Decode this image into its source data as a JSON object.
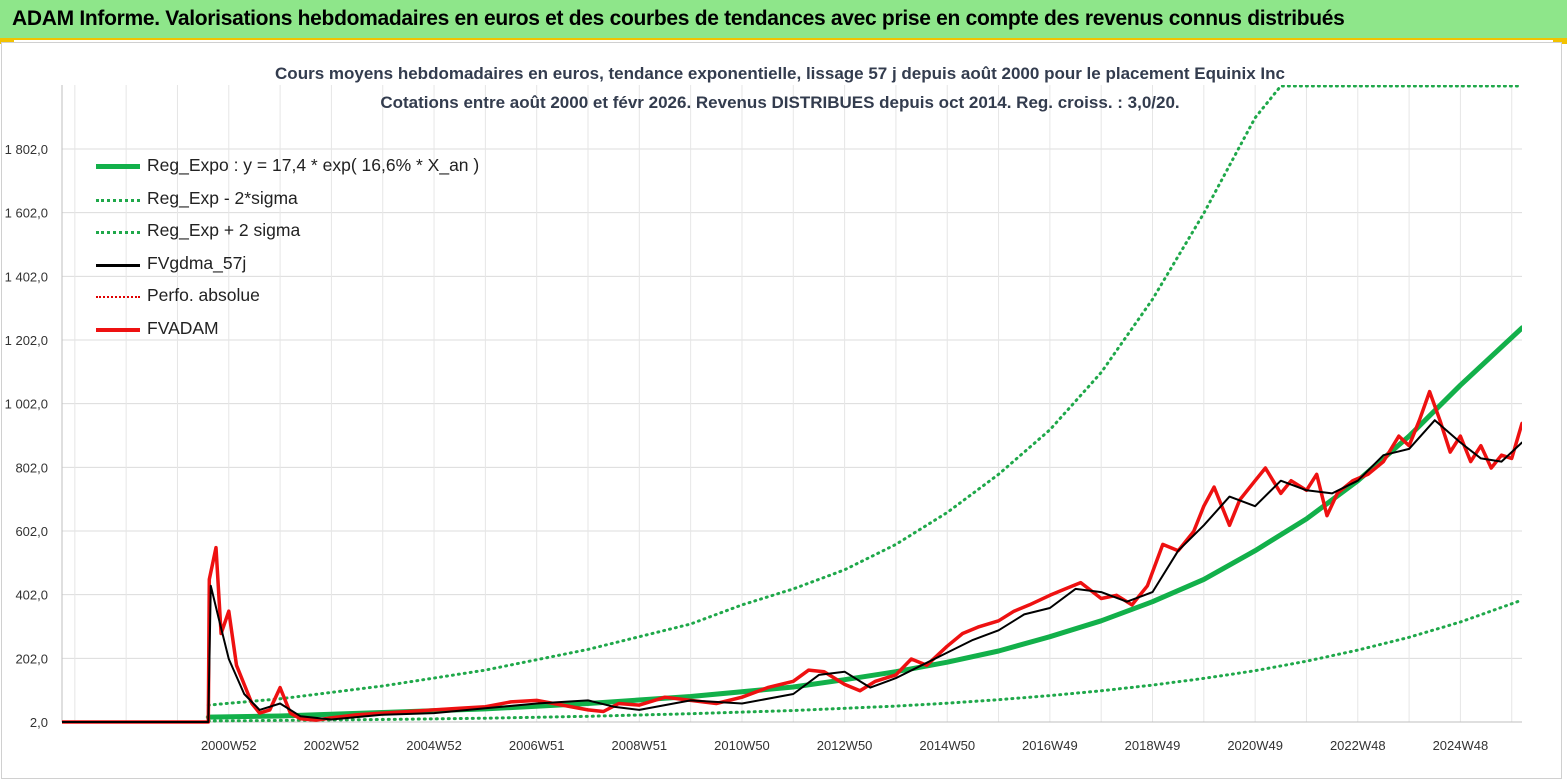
{
  "banner": {
    "title": "ADAM Informe. Valorisations hebdomadaires en euros et des courbes de tendances avec prise en compte des revenus connus distribués"
  },
  "colors": {
    "banner_bg": "#8ee68a",
    "banner_border": "#f2c200",
    "reg_expo": "#12b04a",
    "sigma_bands": "#1fa84a",
    "fvgdma": "#000000",
    "perfo": "#e00000",
    "fvadam": "#ee1111"
  },
  "chart_data": {
    "type": "line",
    "title": "Cours moyens hebdomadaires en euros, tendance exponentielle, lissage 57 j depuis août 2000 pour le placement Equinix Inc",
    "subtitle": "Cotations entre août 2000 et févr 2026. Revenus DISTRIBUES depuis oct 2014. Reg. croiss. : 3,0/20.",
    "y_ticks": [
      "2,0",
      "202,0",
      "402,0",
      "602,0",
      "802,0",
      "1 002,0",
      "1 202,0",
      "1 402,0",
      "1 602,0",
      "1 802,0"
    ],
    "ylim": [
      2,
      2000
    ],
    "x_ticks": [
      "2000W52",
      "2002W52",
      "2004W52",
      "2006W51",
      "2008W51",
      "2010W50",
      "2012W50",
      "2014W50",
      "2016W49",
      "2018W49",
      "2020W49",
      "2022W48",
      "2024W48"
    ],
    "x_tick_years": [
      2001.0,
      2003.0,
      2005.0,
      2007.0,
      2009.0,
      2011.0,
      2013.0,
      2015.0,
      2017.0,
      2019.0,
      2021.0,
      2023.0,
      2025.0
    ],
    "xlim": [
      1997.75,
      2026.2
    ],
    "grid": true,
    "legend_position": "top-left",
    "series": [
      {
        "name": "Reg_Expo : y = 17,4 * exp( 16,6% *  X_an )",
        "style": "solid-thick",
        "x": [
          2000.6,
          2002,
          2004,
          2006,
          2008,
          2010,
          2012,
          2013,
          2014,
          2015,
          2016,
          2017,
          2018,
          2019,
          2020,
          2021,
          2022,
          2023,
          2024,
          2025,
          2026.2
        ],
        "y": [
          17.4,
          21,
          32,
          43,
          60,
          82,
          112,
          135,
          160,
          190,
          225,
          270,
          320,
          380,
          450,
          540,
          640,
          760,
          900,
          1060,
          1240
        ]
      },
      {
        "name": "Reg_Exp - 2*sigma",
        "style": "dotted",
        "x": [
          2000.6,
          2002,
          2004,
          2006,
          2008,
          2010,
          2012,
          2014,
          2015,
          2016,
          2017,
          2018,
          2019,
          2020,
          2021,
          2022,
          2023,
          2024,
          2025,
          2026.2
        ],
        "y": [
          5,
          7,
          10,
          14,
          20,
          28,
          38,
          52,
          61,
          72,
          85,
          100,
          118,
          139,
          163,
          193,
          228,
          268,
          316,
          385
        ]
      },
      {
        "name": "Reg_Exp + 2 sigma",
        "style": "dotted",
        "x": [
          2000.6,
          2002,
          2004,
          2006,
          2008,
          2010,
          2011,
          2012,
          2013,
          2014,
          2015,
          2016,
          2017,
          2018,
          2019,
          2020,
          2021,
          2021.5,
          2022,
          2024,
          2026.2
        ],
        "y": [
          55,
          75,
          115,
          165,
          230,
          310,
          370,
          420,
          480,
          560,
          660,
          780,
          920,
          1100,
          1330,
          1600,
          1900,
          2000,
          2000,
          2000,
          2000
        ]
      },
      {
        "name": "FVgdma_57j",
        "style": "solid-thin",
        "x": [
          1997.75,
          2000.6,
          2000.65,
          2000.8,
          2001.0,
          2001.3,
          2001.6,
          2002.0,
          2002.4,
          2003.0,
          2004.0,
          2005.0,
          2006.0,
          2007.0,
          2008.0,
          2008.5,
          2009.0,
          2010.0,
          2011.0,
          2012.0,
          2012.5,
          2013.0,
          2013.5,
          2014.0,
          2014.5,
          2015.0,
          2015.5,
          2016.0,
          2016.5,
          2017.0,
          2017.5,
          2018.0,
          2018.5,
          2019.0,
          2019.5,
          2020.0,
          2020.5,
          2021.0,
          2021.5,
          2022.0,
          2022.5,
          2023.0,
          2023.5,
          2024.0,
          2024.5,
          2025.0,
          2025.4,
          2025.8,
          2026.2
        ],
        "y": [
          2,
          2,
          430,
          330,
          200,
          90,
          40,
          60,
          20,
          10,
          25,
          30,
          45,
          60,
          70,
          50,
          40,
          70,
          60,
          90,
          150,
          160,
          110,
          140,
          180,
          220,
          260,
          290,
          340,
          360,
          420,
          410,
          380,
          410,
          540,
          620,
          710,
          680,
          760,
          730,
          720,
          760,
          840,
          860,
          950,
          880,
          830,
          820,
          880
        ]
      },
      {
        "name": "Perfo. absolue",
        "style": "dotted-thin",
        "x": [
          1997.75,
          2000.6
        ],
        "y": [
          2,
          2
        ]
      },
      {
        "name": "FVADAM",
        "style": "solid-medium",
        "x": [
          1997.75,
          2000.6,
          2000.62,
          2000.75,
          2000.85,
          2001.0,
          2001.15,
          2001.3,
          2001.45,
          2001.6,
          2001.8,
          2002.0,
          2002.2,
          2002.4,
          2002.7,
          2003.0,
          2003.5,
          2004.0,
          2004.5,
          2005.0,
          2005.5,
          2006.0,
          2006.5,
          2007.0,
          2007.5,
          2008.0,
          2008.3,
          2008.6,
          2009.0,
          2009.5,
          2010.0,
          2010.5,
          2011.0,
          2011.5,
          2012.0,
          2012.3,
          2012.6,
          2013.0,
          2013.3,
          2013.6,
          2014.0,
          2014.3,
          2014.6,
          2015.0,
          2015.3,
          2015.6,
          2016.0,
          2016.3,
          2016.6,
          2017.0,
          2017.3,
          2017.6,
          2018.0,
          2018.3,
          2018.6,
          2018.9,
          2019.2,
          2019.5,
          2019.8,
          2020.0,
          2020.2,
          2020.5,
          2020.7,
          2021.0,
          2021.2,
          2021.5,
          2021.7,
          2022.0,
          2022.2,
          2022.4,
          2022.6,
          2022.9,
          2023.2,
          2023.5,
          2023.8,
          2024.0,
          2024.2,
          2024.4,
          2024.6,
          2024.8,
          2025.0,
          2025.2,
          2025.4,
          2025.6,
          2025.8,
          2026.0,
          2026.2
        ],
        "y": [
          2,
          2,
          450,
          550,
          280,
          350,
          180,
          120,
          60,
          30,
          40,
          110,
          30,
          12,
          8,
          15,
          25,
          30,
          35,
          40,
          45,
          50,
          65,
          70,
          55,
          40,
          35,
          60,
          55,
          80,
          70,
          60,
          80,
          110,
          130,
          165,
          160,
          120,
          100,
          130,
          150,
          200,
          180,
          240,
          280,
          300,
          320,
          350,
          370,
          400,
          420,
          440,
          390,
          400,
          370,
          430,
          560,
          540,
          600,
          680,
          740,
          620,
          700,
          760,
          800,
          720,
          760,
          730,
          780,
          650,
          720,
          760,
          780,
          820,
          900,
          870,
          950,
          1040,
          950,
          850,
          900,
          820,
          870,
          800,
          840,
          830,
          940
        ]
      }
    ]
  }
}
